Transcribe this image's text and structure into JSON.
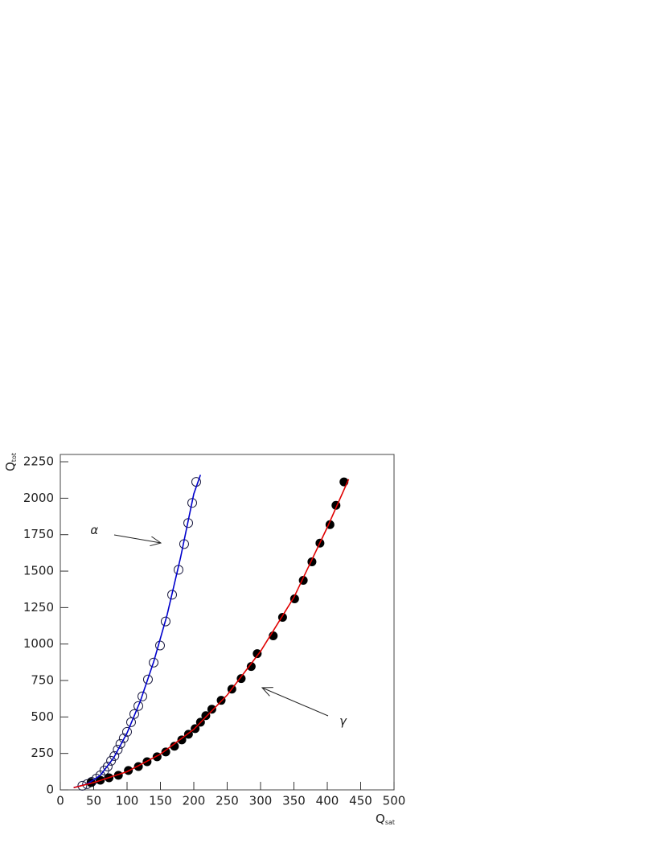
{
  "chart_data": {
    "type": "scatter",
    "xlabel": [
      "Q",
      "sat"
    ],
    "ylabel": [
      "Q",
      "tot"
    ],
    "xlim": [
      0,
      500
    ],
    "ylim": [
      0,
      2300
    ],
    "xticks": [
      0,
      50,
      100,
      150,
      200,
      250,
      300,
      350,
      400,
      450,
      500
    ],
    "yticks": [
      0,
      250,
      500,
      750,
      1000,
      1250,
      1500,
      1750,
      2000,
      2250
    ],
    "annotations": [
      {
        "text": "α",
        "x": 45,
        "y": 1780
      },
      {
        "text": "γ",
        "x": 418,
        "y": 470
      }
    ],
    "series": [
      {
        "marker": "open",
        "color": "#1a1a40",
        "x": [
          203.6,
          197.6,
          191.6,
          185.5,
          177.1,
          167.5,
          157.8,
          149.4,
          139.8,
          131.3,
          122.9,
          116.9,
          110.8,
          106,
          100,
          95,
          90,
          86,
          81,
          76,
          71,
          66,
          60,
          54,
          47,
          40,
          33
        ],
        "values": [
          2112,
          1968,
          1830,
          1686,
          1509,
          1338,
          1155,
          990,
          873,
          757,
          641,
          575,
          520,
          464,
          398,
          354,
          315,
          276,
          232,
          199,
          160,
          133,
          100,
          77,
          55,
          39,
          28
        ]
      },
      {
        "marker": "filled",
        "color": "#000000",
        "x": [
          425,
          413,
          404,
          389,
          377,
          364,
          351,
          333,
          319,
          295,
          286,
          271,
          257,
          241,
          227,
          218,
          210,
          202,
          192,
          182,
          171,
          158,
          145,
          130,
          117,
          102,
          87,
          73,
          60,
          46
        ],
        "values": [
          2112,
          1951,
          1819,
          1692,
          1564,
          1437,
          1310,
          1183,
          1056,
          934,
          846,
          763,
          691,
          614,
          553,
          509,
          464,
          420,
          381,
          343,
          299,
          260,
          227,
          193,
          160,
          133,
          100,
          83,
          66,
          50
        ]
      },
      {
        "marker": "line",
        "color": "#0000cc",
        "x": [
          20,
          40,
          60,
          80,
          100,
          120,
          140,
          160,
          180,
          200,
          210
        ],
        "values": [
          15,
          40,
          100,
          220,
          390,
          610,
          880,
          1200,
          1590,
          2030,
          2160
        ]
      },
      {
        "marker": "line",
        "color": "#e00000",
        "x": [
          20,
          50,
          100,
          150,
          200,
          250,
          300,
          350,
          400,
          432
        ],
        "values": [
          15,
          50,
          125,
          245,
          415,
          650,
          950,
          1320,
          1800,
          2130
        ]
      }
    ]
  }
}
